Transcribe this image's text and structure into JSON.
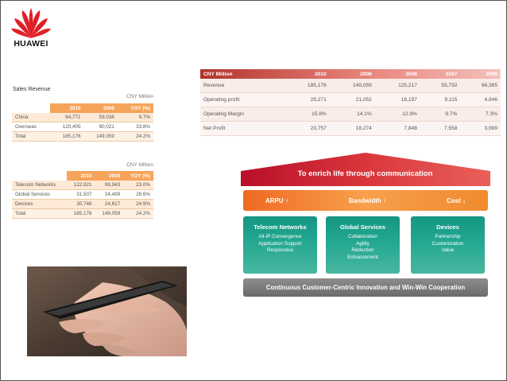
{
  "logo": {
    "text": "HUAWEI",
    "color": "#e01f26"
  },
  "sales": {
    "title": "Sales Revenue",
    "unit": "CNY Million",
    "headers": [
      "",
      "2010",
      "2009",
      "YOY (%)"
    ],
    "rows": [
      [
        "China",
        "64,771",
        "59,038",
        "9.7%"
      ],
      [
        "Overseas",
        "120,405",
        "90,021",
        "33.8%"
      ],
      [
        "Total",
        "185,176",
        "149,059",
        "24.2%"
      ]
    ]
  },
  "segments": {
    "unit": "CNY Million",
    "headers": [
      "",
      "2010",
      "2009",
      "YOY (%)"
    ],
    "rows": [
      [
        "Telecom Networks",
        "122,921",
        "99,943",
        "23.0%"
      ],
      [
        "Global Services",
        "31,507",
        "24,499",
        "28.6%"
      ],
      [
        "Devices",
        "30,748",
        "24,617",
        "24.9%"
      ],
      [
        "Total",
        "185,176",
        "149,059",
        "24.2%"
      ]
    ]
  },
  "financials": {
    "headers": [
      "CNY Million",
      "2010",
      "2009",
      "2008",
      "2007",
      "2006"
    ],
    "rows": [
      [
        "Revenue",
        "185,176",
        "149,059",
        "125,217",
        "93,792",
        "66,365"
      ],
      [
        "Operating profit",
        "29,271",
        "21,052",
        "16,197",
        "9,115",
        "4,846"
      ],
      [
        "Operating Margin",
        "15.8%",
        "14.1%",
        "12.9%",
        "9.7%",
        "7.3%"
      ],
      [
        "Net Profit",
        "23,757",
        "18,274",
        "7,848",
        "7,558",
        "3,999"
      ]
    ]
  },
  "strategy": {
    "roof": "To enrich life through communication",
    "bar": {
      "arpu": "ARPU ↑",
      "bandwidth": "Bandwidth ↑",
      "cost": "Cost ↓"
    },
    "pillars": [
      {
        "title": "Telecom Networks",
        "items": [
          "All-IP Convergence",
          "Application Support",
          "Responsive"
        ]
      },
      {
        "title": "Global Services",
        "items": [
          "Collaboration",
          "Agility",
          "Reduction",
          "Enhancement"
        ]
      },
      {
        "title": "Devices",
        "items": [
          "Partnership",
          "Customization",
          "Value"
        ]
      }
    ],
    "foundation": "Continuous Customer-Centric Innovation and Win-Win Cooperation"
  }
}
